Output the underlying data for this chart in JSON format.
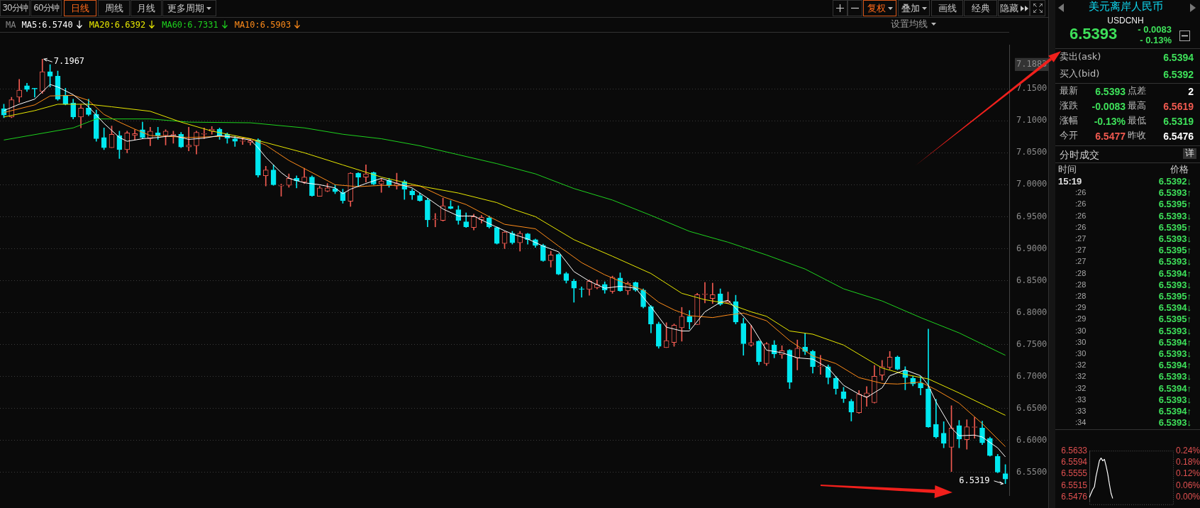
{
  "chart_data": [
    {
      "type": "other",
      "annotations": [
        "30分钟",
        "60分钟",
        "日线",
        "周线",
        "月线",
        "更多周期",
        "复权",
        "叠加",
        "画线",
        "经典",
        "隐藏"
      ]
    },
    {
      "type": "candlestick",
      "legend_title": "MA",
      "legend": "top left",
      "grid": "y",
      "categories": [
        null,
        null,
        null,
        null,
        null,
        null,
        null,
        null,
        null,
        null,
        null,
        null,
        null,
        null,
        null,
        null,
        null,
        null,
        null,
        null,
        null,
        null,
        null,
        null,
        null,
        null,
        null,
        null,
        null,
        null,
        null,
        null,
        null,
        null,
        null,
        null,
        null,
        null,
        null,
        null,
        null,
        null,
        null,
        null,
        null,
        null,
        null,
        null,
        null,
        null,
        null,
        null,
        null,
        null,
        null,
        null,
        null,
        null,
        null,
        null,
        null,
        null,
        null,
        null,
        null,
        null,
        null,
        null,
        null,
        null,
        null,
        null,
        null,
        null,
        null,
        null,
        null,
        null,
        null,
        null,
        null,
        null,
        null,
        null,
        null,
        null,
        null,
        null,
        null,
        null,
        null,
        null,
        null,
        null,
        null,
        null,
        null,
        null,
        null,
        null,
        null,
        null,
        null,
        null,
        null,
        null,
        null,
        null,
        null,
        null,
        null,
        null,
        null,
        null,
        null,
        null,
        null,
        null,
        null,
        null,
        null,
        null,
        null,
        null,
        null,
        null,
        null,
        null,
        null,
        null,
        null
      ],
      "ohlc": [
        [
          7.119,
          7.126,
          7.105,
          7.109
        ],
        [
          7.106,
          7.137,
          7.105,
          7.133
        ],
        [
          7.137,
          7.165,
          7.129,
          7.148
        ],
        [
          7.155,
          7.159,
          7.146,
          7.149
        ],
        [
          7.151,
          7.151,
          7.137,
          7.15
        ],
        [
          7.146,
          7.1967,
          7.143,
          7.177
        ],
        [
          7.177,
          7.188,
          7.153,
          7.17
        ],
        [
          7.17,
          7.178,
          7.132,
          7.134
        ],
        [
          7.14,
          7.151,
          7.125,
          7.126
        ],
        [
          7.128,
          7.134,
          7.103,
          7.106
        ],
        [
          7.106,
          7.125,
          7.089,
          7.12
        ],
        [
          7.12,
          7.134,
          7.108,
          7.11
        ],
        [
          7.11,
          7.117,
          7.068,
          7.072
        ],
        [
          7.074,
          7.089,
          7.055,
          7.058
        ],
        [
          7.058,
          7.092,
          7.058,
          7.079
        ],
        [
          7.077,
          7.084,
          7.041,
          7.055
        ],
        [
          7.055,
          7.084,
          7.05,
          7.081
        ],
        [
          7.077,
          7.086,
          7.07,
          7.08
        ],
        [
          7.086,
          7.098,
          7.072,
          7.074
        ],
        [
          7.072,
          7.09,
          7.061,
          7.084
        ],
        [
          7.081,
          7.09,
          7.071,
          7.077
        ],
        [
          7.077,
          7.086,
          7.062,
          7.084
        ],
        [
          7.077,
          7.084,
          7.065,
          7.079
        ],
        [
          7.079,
          7.082,
          7.058,
          7.059
        ],
        [
          7.059,
          7.09,
          7.053,
          7.062
        ],
        [
          7.061,
          7.084,
          7.048,
          7.082
        ],
        [
          7.079,
          7.089,
          7.072,
          7.08
        ],
        [
          7.084,
          7.091,
          7.079,
          7.087
        ],
        [
          7.087,
          7.089,
          7.071,
          7.077
        ],
        [
          7.079,
          7.081,
          7.065,
          7.073
        ],
        [
          7.072,
          7.076,
          7.06,
          7.068
        ],
        [
          7.068,
          7.073,
          7.063,
          7.068
        ],
        [
          7.066,
          7.072,
          7.062,
          7.069
        ],
        [
          7.07,
          7.072,
          7.012,
          7.015
        ],
        [
          7.014,
          7.029,
          6.998,
          7.023
        ],
        [
          7.023,
          7.031,
          6.999,
          7.0
        ],
        [
          6.998,
          7.001,
          6.982,
          6.998
        ],
        [
          6.999,
          7.017,
          6.996,
          7.01
        ],
        [
          7.01,
          7.014,
          6.995,
          7.006
        ],
        [
          7.004,
          7.026,
          7.002,
          7.012
        ],
        [
          7.012,
          7.014,
          6.982,
          6.983
        ],
        [
          6.982,
          6.998,
          6.982,
          6.995
        ],
        [
          6.99,
          7.002,
          6.989,
          6.995
        ],
        [
          6.994,
          7.0,
          6.986,
          6.989
        ],
        [
          6.988,
          6.993,
          6.971,
          6.975
        ],
        [
          6.974,
          7.019,
          6.966,
          7.018
        ],
        [
          7.018,
          7.019,
          6.998,
          7.012
        ],
        [
          7.012,
          7.031,
          7.004,
          7.017
        ],
        [
          7.019,
          7.02,
          7.0,
          7.001
        ],
        [
          7.001,
          7.01,
          6.988,
          7.006
        ],
        [
          7.007,
          7.01,
          6.996,
          6.999
        ],
        [
          6.998,
          7.018,
          6.993,
          7.002
        ],
        [
          7.005,
          7.007,
          6.977,
          6.993
        ],
        [
          6.99,
          6.993,
          6.977,
          6.984
        ],
        [
          6.983,
          6.987,
          6.974,
          6.975
        ],
        [
          6.976,
          6.979,
          6.934,
          6.945
        ],
        [
          6.945,
          6.955,
          6.934,
          6.945
        ],
        [
          6.944,
          6.979,
          6.943,
          6.967
        ],
        [
          6.966,
          6.975,
          6.962,
          6.963
        ],
        [
          6.961,
          6.967,
          6.938,
          6.944
        ],
        [
          6.942,
          6.956,
          6.933,
          6.934
        ],
        [
          6.933,
          6.954,
          6.929,
          6.95
        ],
        [
          6.945,
          6.952,
          6.94,
          6.949
        ],
        [
          6.948,
          6.951,
          6.932,
          6.934
        ],
        [
          6.933,
          6.934,
          6.907,
          6.908
        ],
        [
          6.908,
          6.927,
          6.9,
          6.926
        ],
        [
          6.924,
          6.927,
          6.907,
          6.909
        ],
        [
          6.909,
          6.927,
          6.896,
          6.924
        ],
        [
          6.923,
          6.924,
          6.907,
          6.914
        ],
        [
          6.914,
          6.915,
          6.902,
          6.905
        ],
        [
          6.905,
          6.907,
          6.88,
          6.881
        ],
        [
          6.881,
          6.896,
          6.871,
          6.89
        ],
        [
          6.891,
          6.892,
          6.859,
          6.86
        ],
        [
          6.861,
          6.863,
          6.846,
          6.85
        ],
        [
          6.849,
          6.852,
          6.816,
          6.838
        ],
        [
          6.837,
          6.84,
          6.824,
          6.836
        ],
        [
          6.836,
          6.851,
          6.827,
          6.849
        ],
        [
          6.839,
          6.851,
          6.837,
          6.844
        ],
        [
          6.844,
          6.848,
          6.83,
          6.835
        ],
        [
          6.833,
          6.857,
          6.83,
          6.855
        ],
        [
          6.854,
          6.862,
          6.833,
          6.834
        ],
        [
          6.834,
          6.848,
          6.828,
          6.846
        ],
        [
          6.847,
          6.848,
          6.833,
          6.835
        ],
        [
          6.835,
          6.837,
          6.807,
          6.809
        ],
        [
          6.809,
          6.811,
          6.768,
          6.782
        ],
        [
          6.782,
          6.785,
          6.744,
          6.747
        ],
        [
          6.745,
          6.784,
          6.745,
          6.756
        ],
        [
          6.753,
          6.782,
          6.747,
          6.78
        ],
        [
          6.776,
          6.808,
          6.755,
          6.794
        ],
        [
          6.794,
          6.803,
          6.774,
          6.785
        ],
        [
          6.781,
          6.83,
          6.781,
          6.828
        ],
        [
          6.828,
          6.847,
          6.815,
          6.829
        ],
        [
          6.822,
          6.846,
          6.814,
          6.828
        ],
        [
          6.829,
          6.837,
          6.811,
          6.813
        ],
        [
          6.815,
          6.832,
          6.814,
          6.818
        ],
        [
          6.817,
          6.827,
          6.782,
          6.785
        ],
        [
          6.783,
          6.791,
          6.733,
          6.751
        ],
        [
          6.749,
          6.78,
          6.747,
          6.753
        ],
        [
          6.755,
          6.756,
          6.718,
          6.723
        ],
        [
          6.72,
          6.753,
          6.717,
          6.751
        ],
        [
          6.749,
          6.756,
          6.729,
          6.735
        ],
        [
          6.734,
          6.748,
          6.728,
          6.74
        ],
        [
          6.741,
          6.742,
          6.681,
          6.691
        ],
        [
          6.729,
          6.757,
          6.71,
          6.744
        ],
        [
          6.746,
          6.767,
          6.734,
          6.739
        ],
        [
          6.739,
          6.741,
          6.705,
          6.715
        ],
        [
          6.715,
          6.733,
          6.703,
          6.715
        ],
        [
          6.715,
          6.718,
          6.688,
          6.698
        ],
        [
          6.697,
          6.7,
          6.672,
          6.681
        ],
        [
          6.676,
          6.683,
          6.659,
          6.665
        ],
        [
          6.661,
          6.664,
          6.63,
          6.644
        ],
        [
          6.643,
          6.678,
          6.642,
          6.672
        ],
        [
          6.668,
          6.684,
          6.653,
          6.674
        ],
        [
          6.659,
          6.717,
          6.658,
          6.7
        ],
        [
          6.702,
          6.725,
          6.694,
          6.715
        ],
        [
          6.714,
          6.739,
          6.711,
          6.73
        ],
        [
          6.73,
          6.732,
          6.71,
          6.711
        ],
        [
          6.709,
          6.715,
          6.679,
          6.698
        ],
        [
          6.697,
          6.7,
          6.685,
          6.688
        ],
        [
          6.689,
          6.7,
          6.671,
          6.682
        ],
        [
          6.68,
          6.774,
          6.62,
          6.621
        ],
        [
          6.625,
          6.664,
          6.603,
          6.605
        ],
        [
          6.611,
          6.629,
          6.588,
          6.595
        ],
        [
          6.589,
          6.654,
          6.551,
          6.619
        ],
        [
          6.623,
          6.631,
          6.588,
          6.602
        ],
        [
          6.601,
          6.632,
          6.586,
          6.621
        ],
        [
          6.62,
          6.636,
          6.603,
          6.62
        ],
        [
          6.619,
          6.63,
          6.593,
          6.596
        ],
        [
          6.603,
          6.605,
          6.575,
          6.576
        ],
        [
          6.575,
          6.578,
          6.549,
          6.55
        ],
        [
          6.5477,
          6.5619,
          6.5319,
          6.5393
        ]
      ],
      "series": [
        {
          "type": "line",
          "name": "MA5:6.5740",
          "color": "#ffffff",
          "values": [
            7.116,
            null,
            7.126,
            null,
            7.134,
            null,
            7.157,
            7.153,
            null,
            7.141,
            null,
            7.122,
            null,
            7.096,
            null,
            7.074,
            7.068,
            null,
            7.072,
            null,
            7.074,
            null,
            7.077,
            null,
            7.071,
            null,
            7.073,
            null,
            7.077,
            null,
            7.074,
            null,
            7.07,
            7.058,
            7.043,
            null,
            7.019,
            7.01,
            null,
            7.003,
            null,
            7.0,
            null,
            6.995,
            6.986,
            6.993,
            null,
            7.002,
            null,
            7.01,
            null,
            7.002,
            null,
            6.995,
            null,
            6.979,
            null,
            6.962,
            null,
            6.951,
            null,
            6.951,
            null,
            6.939,
            null,
            6.928,
            6.923,
            null,
            6.915,
            null,
            6.904,
            null,
            6.895,
            null,
            6.864,
            null,
            6.849,
            null,
            6.838,
            null,
            6.841,
            null,
            6.838,
            null,
            6.809,
            null,
            6.777,
            null,
            6.771,
            6.771,
            null,
            6.801,
            null,
            6.816,
            6.819,
            null,
            6.794,
            6.78,
            null,
            6.741,
            null,
            6.737,
            null,
            6.729,
            null,
            6.727,
            null,
            6.713,
            null,
            6.686,
            null,
            6.672,
            6.667,
            null,
            6.682,
            6.701,
            null,
            6.71,
            null,
            6.701,
            6.686,
            6.66,
            null,
            6.619,
            6.607,
            null,
            6.608,
            6.605,
            null,
            6.588,
            6.574
          ]
        },
        {
          "type": "line",
          "name": "MA20:6.6392",
          "color": "#e8e800",
          "values": [
            7.106,
            null,
            null,
            null,
            7.116,
            null,
            null,
            7.126,
            null,
            null,
            null,
            7.126,
            null,
            null,
            7.122,
            null,
            null,
            null,
            null,
            7.115,
            null,
            null,
            null,
            7.098,
            null,
            null,
            null,
            7.084,
            null,
            null,
            null,
            null,
            7.072,
            null,
            7.066,
            null,
            null,
            null,
            null,
            7.05,
            null,
            null,
            null,
            null,
            7.031,
            null,
            null,
            null,
            null,
            7.012,
            null,
            null,
            null,
            null,
            6.998,
            null,
            null,
            null,
            null,
            6.987,
            null,
            null,
            null,
            null,
            6.972,
            null,
            6.962,
            null,
            null,
            6.95,
            null,
            null,
            null,
            null,
            6.914,
            null,
            null,
            null,
            null,
            6.888,
            null,
            null,
            null,
            null,
            6.861,
            null,
            null,
            null,
            6.83,
            null,
            null,
            6.82,
            null,
            null,
            6.814,
            null,
            null,
            6.801,
            null,
            6.794,
            null,
            null,
            6.771,
            null,
            null,
            6.766,
            null,
            null,
            null,
            6.749,
            null,
            null,
            null,
            null,
            6.713,
            null,
            null,
            6.703,
            null,
            null,
            6.696,
            null,
            null,
            null,
            6.674,
            null,
            null,
            null,
            null,
            null,
            6.639
          ]
        },
        {
          "type": "line",
          "name": "MA60:6.7331",
          "color": "#1ed21e",
          "values": [
            7.07,
            null,
            null,
            null,
            null,
            null,
            null,
            null,
            null,
            7.089,
            null,
            null,
            7.103,
            null,
            null,
            null,
            null,
            null,
            null,
            7.103,
            null,
            null,
            null,
            null,
            7.098,
            null,
            null,
            null,
            null,
            null,
            null,
            null,
            7.097,
            null,
            null,
            null,
            null,
            null,
            null,
            7.089,
            null,
            null,
            null,
            null,
            7.079,
            null,
            null,
            null,
            null,
            7.072,
            null,
            null,
            null,
            null,
            7.061,
            null,
            null,
            null,
            null,
            7.047,
            null,
            null,
            null,
            null,
            7.033,
            null,
            null,
            null,
            null,
            7.017,
            null,
            null,
            null,
            null,
            6.994,
            null,
            null,
            null,
            null,
            6.976,
            null,
            null,
            null,
            null,
            6.952,
            null,
            null,
            null,
            null,
            6.927,
            null,
            null,
            null,
            null,
            6.91,
            null,
            null,
            null,
            null,
            6.89,
            null,
            null,
            null,
            null,
            6.868,
            null,
            null,
            null,
            null,
            6.837,
            null,
            null,
            null,
            null,
            6.818,
            null,
            null,
            null,
            null,
            6.792,
            null,
            null,
            null,
            null,
            6.768,
            null,
            null,
            null,
            null,
            null,
            6.733
          ]
        },
        {
          "type": "line",
          "name": "MA10:6.5903",
          "color": "#ff8c1a",
          "values": [
            7.113,
            null,
            null,
            null,
            7.125,
            null,
            7.139,
            null,
            null,
            7.14,
            null,
            7.132,
            null,
            7.11,
            null,
            7.098,
            null,
            7.087,
            null,
            7.077,
            null,
            null,
            null,
            null,
            7.074,
            null,
            null,
            null,
            null,
            7.076,
            null,
            null,
            7.072,
            null,
            7.062,
            null,
            null,
            7.038,
            null,
            null,
            7.019,
            null,
            null,
            7.0,
            null,
            null,
            6.997,
            null,
            null,
            6.999,
            null,
            null,
            6.999,
            null,
            6.998,
            null,
            null,
            6.981,
            null,
            null,
            6.969,
            null,
            null,
            6.95,
            null,
            6.938,
            null,
            null,
            null,
            6.931,
            null,
            null,
            6.904,
            null,
            null,
            6.878,
            null,
            null,
            6.859,
            null,
            null,
            6.844,
            null,
            6.835,
            null,
            6.816,
            null,
            6.804,
            null,
            6.795,
            null,
            null,
            6.792,
            null,
            6.796,
            null,
            6.799,
            null,
            null,
            6.787,
            null,
            null,
            6.756,
            null,
            null,
            6.732,
            null,
            null,
            6.72,
            null,
            null,
            6.698,
            null,
            null,
            6.689,
            null,
            6.688,
            null,
            null,
            6.691,
            null,
            6.679,
            null,
            null,
            6.658,
            null,
            null,
            6.626,
            null,
            null,
            6.59
          ]
        }
      ],
      "ylim": [
        6.513,
        7.219
      ],
      "yticks": [
        {
          "value": 7.1883,
          "label": "7.1883"
        },
        {
          "value": 7.15,
          "label": "7.1500"
        },
        {
          "value": 7.1,
          "label": "7.1000"
        },
        {
          "value": 7.05,
          "label": "7.0500"
        },
        {
          "value": 7.0,
          "label": "7.0000"
        },
        {
          "value": 6.95,
          "label": "6.9500"
        },
        {
          "value": 6.9,
          "label": "6.9000"
        },
        {
          "value": 6.85,
          "label": "6.8500"
        },
        {
          "value": 6.8,
          "label": "6.8000"
        },
        {
          "value": 6.75,
          "label": "6.7500"
        },
        {
          "value": 6.7,
          "label": "6.7000"
        },
        {
          "value": 6.65,
          "label": "6.6500"
        },
        {
          "value": 6.6,
          "label": "6.6000"
        },
        {
          "value": 6.55,
          "label": "6.5500"
        }
      ],
      "annotations": [
        "7.1967",
        "6.5319",
        "设置均线"
      ]
    },
    {
      "type": "other",
      "title": "美元离岸人民币",
      "subtitle": "USDCNH",
      "annotations": [
        "6.5393",
        "- 0.0083",
        "- 0.13%",
        "卖出(ask)",
        "6.5394",
        "买入(bid)",
        "6.5392",
        "最新",
        "6.5393",
        "点差",
        "2",
        "涨跌",
        "-0.0083",
        "最高",
        "6.5619",
        "涨幅",
        "-0.13%",
        "最低",
        "6.5319",
        "今开",
        "6.5477",
        "昨收",
        "6.5476",
        "分时成交",
        "详",
        "时间",
        "价格",
        "15:19",
        "6.5392↓",
        ":26",
        "6.5393↑",
        ":26",
        "6.5395↑",
        ":26",
        "6.5393↓",
        ":26",
        "6.5395↑",
        ":27",
        "6.5393↓",
        ":27",
        "6.5395↑",
        ":27",
        "6.5393↓",
        ":28",
        "6.5394↑",
        ":28",
        "6.5393↓",
        ":28",
        "6.5395↑",
        ":29",
        "6.5394↓",
        ":29",
        "6.5395↑",
        ":30",
        "6.5393↓",
        ":30",
        "6.5394↑",
        ":30",
        "6.5393↓",
        ":32",
        "6.5394↑",
        ":32",
        "6.5393↓",
        ":32",
        "6.5394↑",
        ":33",
        "6.5393↓",
        ":33",
        "6.5394↑",
        ":34",
        "6.5393↓"
      ]
    },
    {
      "type": "line",
      "color": "#ffffff",
      "categories": [
        null,
        null,
        null,
        null,
        null,
        null,
        null,
        null,
        null,
        null,
        null,
        null,
        null,
        null,
        null
      ],
      "values": [
        6.5476,
        6.5489,
        6.5502,
        6.5511,
        6.5547,
        6.5573,
        6.5599,
        6.5608,
        6.5599,
        6.5604,
        6.5582,
        6.5555,
        6.552,
        6.5489,
        6.5472
      ],
      "ylim": [
        6.5462,
        6.5633
      ],
      "yticks": [
        6.5633,
        6.5594,
        6.5555,
        6.5515,
        6.5476
      ],
      "y2lim": [
        -0.0214,
        0.24
      ],
      "y2ticks": [
        {
          "value": 0.24,
          "label": "0.24%"
        },
        {
          "value": 0.18,
          "label": "0.18%"
        },
        {
          "value": 0.12,
          "label": "0.12%"
        },
        {
          "value": 0.06,
          "label": "0.06%"
        },
        {
          "value": 0,
          "label": "0.00%"
        }
      ]
    }
  ]
}
